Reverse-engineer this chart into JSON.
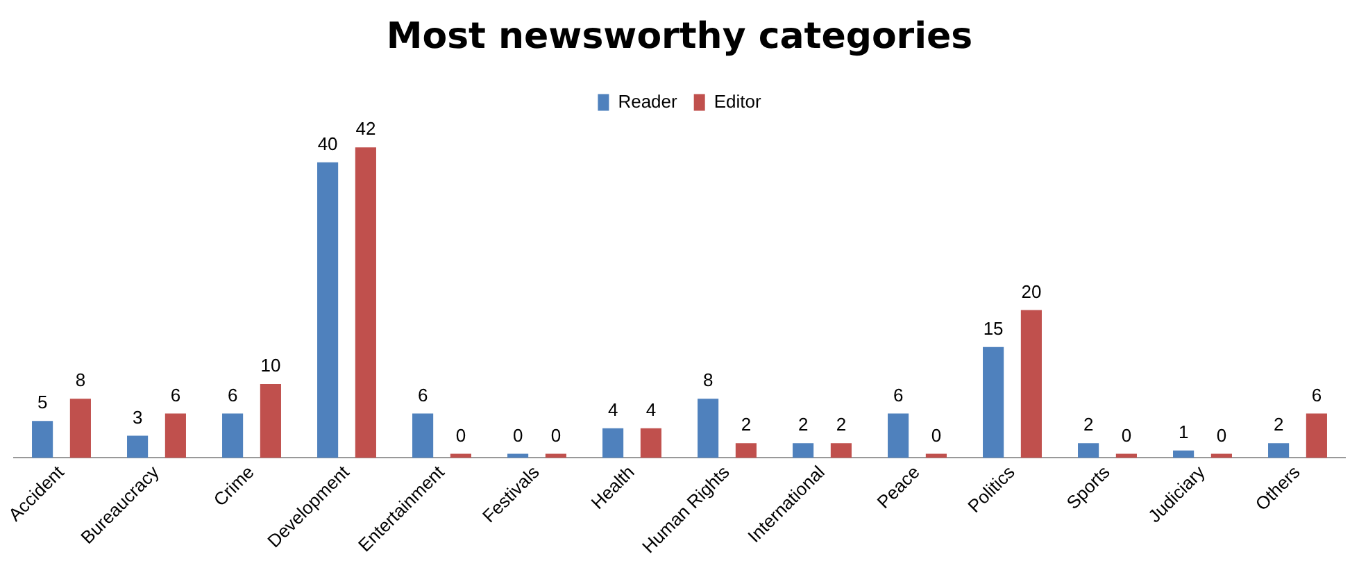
{
  "chart_data": {
    "type": "bar",
    "title": "Most newsworthy categories",
    "categories": [
      "Accident",
      "Bureaucracy",
      "Crime",
      "Development",
      "Entertainment",
      "Festivals",
      "Health",
      "Human Rights",
      "International",
      "Peace",
      "Politics",
      "Sports",
      "Judiciary",
      "Others"
    ],
    "series": [
      {
        "name": "Reader",
        "color": "#4f81bd",
        "values": [
          5,
          3,
          6,
          40,
          6,
          0,
          4,
          8,
          2,
          6,
          15,
          2,
          1,
          2
        ]
      },
      {
        "name": "Editor",
        "color": "#c0504d",
        "values": [
          8,
          6,
          10,
          42,
          0,
          0,
          4,
          2,
          2,
          0,
          20,
          0,
          0,
          6
        ]
      }
    ],
    "data_labels": true,
    "legend": "top",
    "grid": false,
    "tick_labels": "x"
  }
}
